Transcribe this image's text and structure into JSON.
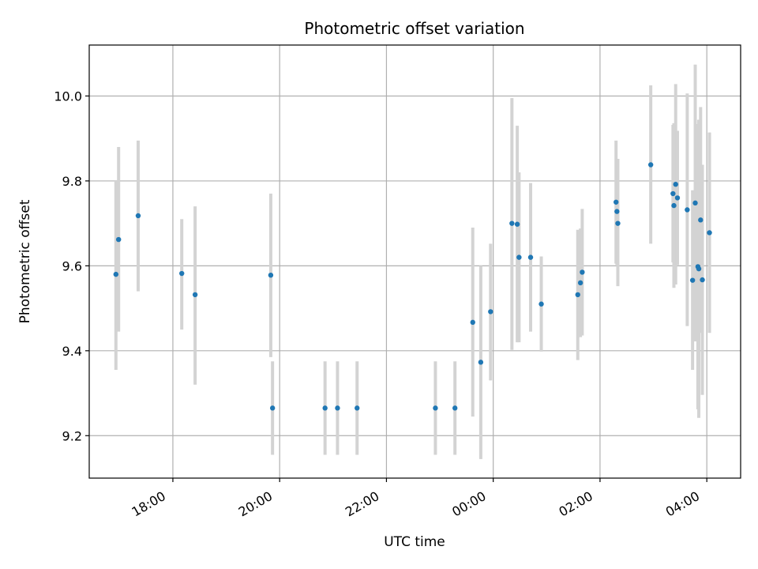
{
  "chart_data": {
    "type": "scatter",
    "title": "Photometric offset variation",
    "xlabel": "UTC time",
    "ylabel": "Photometric offset",
    "x_unit": "UTC time of day",
    "x_ticks": [
      "18:00",
      "20:00",
      "22:00",
      "00:00",
      "02:00",
      "04:00"
    ],
    "y_ticks": [
      "9.2",
      "9.4",
      "9.6",
      "9.8",
      "10.0"
    ],
    "xlim": [
      "16:26",
      "04:38 (next day)"
    ],
    "ylim": [
      9.1,
      10.12
    ],
    "grid": true,
    "marker_color": "#1f77b4",
    "errorbar_color": "#d3d3d3",
    "series": [
      {
        "points": [
          {
            "t": "16:56",
            "y": 9.58,
            "err_low": 9.355,
            "err_high": 9.8
          },
          {
            "t": "16:59",
            "y": 9.662,
            "err_low": 9.445,
            "err_high": 9.88
          },
          {
            "t": "17:21",
            "y": 9.718,
            "err_low": 9.54,
            "err_high": 9.895
          },
          {
            "t": "18:10",
            "y": 9.582,
            "err_low": 9.45,
            "err_high": 9.71
          },
          {
            "t": "18:25",
            "y": 9.532,
            "err_low": 9.32,
            "err_high": 9.74
          },
          {
            "t": "19:50",
            "y": 9.578,
            "err_low": 9.385,
            "err_high": 9.77
          },
          {
            "t": "19:52",
            "y": 9.265,
            "err_low": 9.155,
            "err_high": 9.375
          },
          {
            "t": "20:51",
            "y": 9.265,
            "err_low": 9.155,
            "err_high": 9.375
          },
          {
            "t": "21:05",
            "y": 9.265,
            "err_low": 9.155,
            "err_high": 9.375
          },
          {
            "t": "21:27",
            "y": 9.265,
            "err_low": 9.155,
            "err_high": 9.375
          },
          {
            "t": "22:55",
            "y": 9.265,
            "err_low": 9.155,
            "err_high": 9.375
          },
          {
            "t": "23:17",
            "y": 9.265,
            "err_low": 9.155,
            "err_high": 9.375
          },
          {
            "t": "23:37",
            "y": 9.467,
            "err_low": 9.245,
            "err_high": 9.69
          },
          {
            "t": "23:46",
            "y": 9.373,
            "err_low": 9.145,
            "err_high": 9.6
          },
          {
            "t": "23:57",
            "y": 9.492,
            "err_low": 9.33,
            "err_high": 9.652
          },
          {
            "t": "00:21",
            "y": 9.7,
            "err_low": 9.402,
            "err_high": 9.995
          },
          {
            "t": "00:27",
            "y": 9.698,
            "err_low": 9.42,
            "err_high": 9.93
          },
          {
            "t": "00:29",
            "y": 9.62,
            "err_low": 9.42,
            "err_high": 9.82
          },
          {
            "t": "00:42",
            "y": 9.62,
            "err_low": 9.445,
            "err_high": 9.795
          },
          {
            "t": "00:54",
            "y": 9.51,
            "err_low": 9.398,
            "err_high": 9.622
          },
          {
            "t": "01:35",
            "y": 9.532,
            "err_low": 9.378,
            "err_high": 9.685
          },
          {
            "t": "01:38",
            "y": 9.56,
            "err_low": 9.432,
            "err_high": 9.688
          },
          {
            "t": "01:40",
            "y": 9.585,
            "err_low": 9.436,
            "err_high": 9.734
          },
          {
            "t": "02:18",
            "y": 9.75,
            "err_low": 9.605,
            "err_high": 9.895
          },
          {
            "t": "02:19",
            "y": 9.728,
            "err_low": 9.602,
            "err_high": 9.852
          },
          {
            "t": "02:20",
            "y": 9.7,
            "err_low": 9.552,
            "err_high": 9.852
          },
          {
            "t": "02:57",
            "y": 9.838,
            "err_low": 9.652,
            "err_high": 10.025
          },
          {
            "t": "03:22",
            "y": 9.77,
            "err_low": 9.608,
            "err_high": 9.932
          },
          {
            "t": "03:23",
            "y": 9.742,
            "err_low": 9.548,
            "err_high": 9.936
          },
          {
            "t": "03:25",
            "y": 9.792,
            "err_low": 9.556,
            "err_high": 10.028
          },
          {
            "t": "03:27",
            "y": 9.76,
            "err_low": 9.602,
            "err_high": 9.918
          },
          {
            "t": "03:38",
            "y": 9.732,
            "err_low": 9.458,
            "err_high": 10.006
          },
          {
            "t": "03:44",
            "y": 9.566,
            "err_low": 9.355,
            "err_high": 9.778
          },
          {
            "t": "03:47",
            "y": 9.748,
            "err_low": 9.422,
            "err_high": 10.074
          },
          {
            "t": "03:50",
            "y": 9.598,
            "err_low": 9.262,
            "err_high": 9.934
          },
          {
            "t": "03:51",
            "y": 9.593,
            "err_low": 9.242,
            "err_high": 9.944
          },
          {
            "t": "03:53",
            "y": 9.708,
            "err_low": 9.442,
            "err_high": 9.974
          },
          {
            "t": "03:55",
            "y": 9.567,
            "err_low": 9.296,
            "err_high": 9.838
          },
          {
            "t": "04:03",
            "y": 9.678,
            "err_low": 9.442,
            "err_high": 9.914
          }
        ]
      }
    ]
  }
}
